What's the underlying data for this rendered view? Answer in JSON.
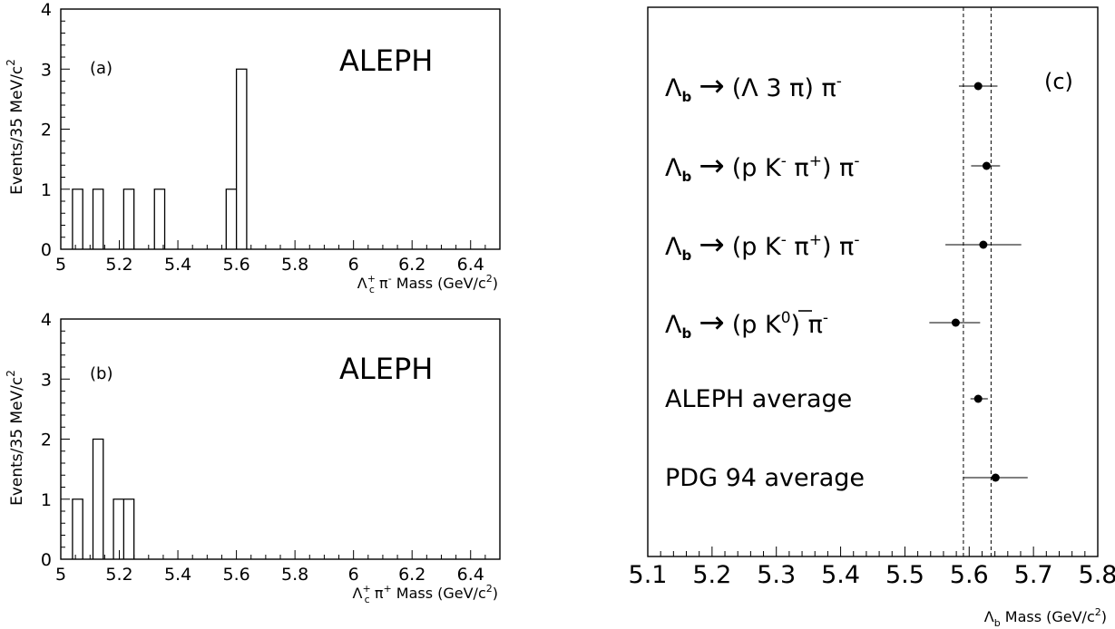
{
  "chart_data": [
    {
      "type": "bar",
      "panel_label": "(a)",
      "experiment": "ALEPH",
      "xlabel": "Λ+c π- Mass (GeV/c2)",
      "ylabel": "Events/35 MeV/c2",
      "xlim": [
        5.0,
        6.5
      ],
      "ylim": [
        0,
        4
      ],
      "xticks": [
        "5",
        "5.2",
        "5.4",
        "5.6",
        "5.8",
        "6",
        "6.2",
        "6.4"
      ],
      "yticks": [
        "0",
        "1",
        "2",
        "3",
        "4"
      ],
      "bin_width": 0.035,
      "bins": [
        {
          "x": 5.04,
          "value": 1
        },
        {
          "x": 5.11,
          "value": 1
        },
        {
          "x": 5.215,
          "value": 1
        },
        {
          "x": 5.32,
          "value": 1
        },
        {
          "x": 5.565,
          "value": 1
        },
        {
          "x": 5.6,
          "value": 3
        }
      ]
    },
    {
      "type": "bar",
      "panel_label": "(b)",
      "experiment": "ALEPH",
      "xlabel": "Λ+c π+ Mass (GeV/c2)",
      "ylabel": "Events/35 MeV/c2",
      "xlim": [
        5.0,
        6.5
      ],
      "ylim": [
        0,
        4
      ],
      "xticks": [
        "5",
        "5.2",
        "5.4",
        "5.6",
        "5.8",
        "6",
        "6.2",
        "6.4"
      ],
      "yticks": [
        "0",
        "1",
        "2",
        "3",
        "4"
      ],
      "bin_width": 0.035,
      "bins": [
        {
          "x": 5.04,
          "value": 1
        },
        {
          "x": 5.11,
          "value": 2
        },
        {
          "x": 5.18,
          "value": 1
        },
        {
          "x": 5.215,
          "value": 1
        }
      ]
    },
    {
      "type": "scatter",
      "panel_label": "(c)",
      "xlabel": "Λb Mass (GeV/c2)",
      "xlim": [
        5.1,
        5.8
      ],
      "xticks": [
        "5.1",
        "5.2",
        "5.3",
        "5.4",
        "5.5",
        "5.6",
        "5.7",
        "5.8"
      ],
      "band": [
        5.591,
        5.634
      ],
      "points": [
        {
          "lambda": "Λ",
          "sub": "b",
          "arrow": "→",
          "decay_html": "(Λ 3 π) π<tspan dy='-11' font-size='17'>-</tspan>",
          "value": 5.614,
          "err_low": 5.584,
          "err_high": 5.644
        },
        {
          "lambda": "Λ",
          "sub": "b",
          "arrow": "→",
          "decay_html": "(p K<tspan dy='-11' font-size='17'>-</tspan><tspan dy='11'> π</tspan><tspan dy='-11' font-size='17'>+</tspan><tspan dy='11'>) π</tspan><tspan dy='-11' font-size='17'>-</tspan>",
          "value": 5.627,
          "err_low": 5.603,
          "err_high": 5.648
        },
        {
          "lambda": "Λ",
          "sub": "b",
          "arrow": "→",
          "decay_html": "(p K<tspan dy='-11' font-size='17'>-</tspan><tspan dy='11'> π</tspan><tspan dy='-11' font-size='17'>+</tspan><tspan dy='11'>) π</tspan><tspan dy='-11' font-size='17'>-</tspan>",
          "value": 5.622,
          "err_low": 5.563,
          "err_high": 5.681
        },
        {
          "lambda": "Λ",
          "sub": "b",
          "arrow": "→",
          "decay_html": "(p K<tspan dy='-11' font-size='17'>0</tspan><tspan dy='11'>) π</tspan><tspan dy='-11' font-size='17'>-</tspan>",
          "value": 5.579,
          "err_low": 5.538,
          "err_high": 5.617
        },
        {
          "label": "ALEPH average",
          "value": 5.614,
          "err_low": 5.602,
          "err_high": 5.629
        },
        {
          "label": "PDG 94 average",
          "value": 5.641,
          "err_low": 5.591,
          "err_high": 5.691
        }
      ]
    }
  ]
}
